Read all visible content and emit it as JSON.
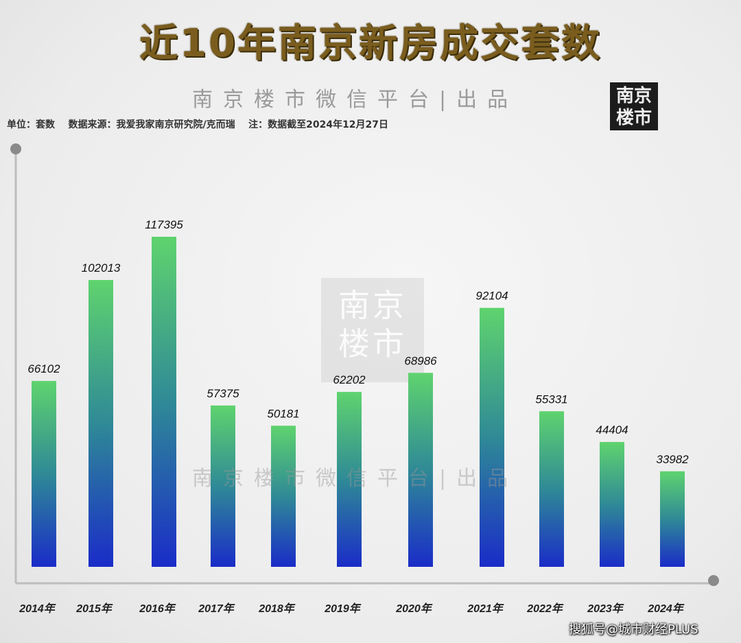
{
  "header": {
    "title": "近10年南京新房成交套数",
    "watermark": "南京楼市微信平台|出品",
    "logo_line1": "南京",
    "logo_line2": "楼市",
    "meta": "单位：套数    数据来源：我爱我家南京研究院/克而瑞    注：数据截至2024年12月27日"
  },
  "stamp": {
    "line1": "南京",
    "line2": "楼市"
  },
  "footer": {
    "source": "搜狐号@城市财经PLUS"
  },
  "colors": {
    "bar_top": "#5fd36e",
    "bar_mid": "#2f8a96",
    "bar_bottom": "#1a2cc8",
    "axis": "#bdbdbd",
    "dot": "#8a8a8a"
  },
  "chart_data": {
    "type": "bar",
    "title": "近10年南京新房成交套数",
    "xlabel": "",
    "ylabel": "",
    "unit": "套数",
    "categories": [
      "2014年",
      "2015年",
      "2016年",
      "2017年",
      "2018年",
      "2019年",
      "2020年",
      "2021年",
      "2022年",
      "2023年",
      "2024年"
    ],
    "values": [
      66102,
      102013,
      117395,
      57375,
      50181,
      62202,
      68986,
      92104,
      55331,
      44404,
      33982
    ],
    "data_labels": [
      "66102",
      "102013",
      "117395",
      "57375",
      "50181",
      "62202",
      "68986",
      "92104",
      "55331",
      "44404",
      "33982"
    ],
    "ylim": [
      0,
      130000
    ],
    "grid": false,
    "legend": "none"
  }
}
